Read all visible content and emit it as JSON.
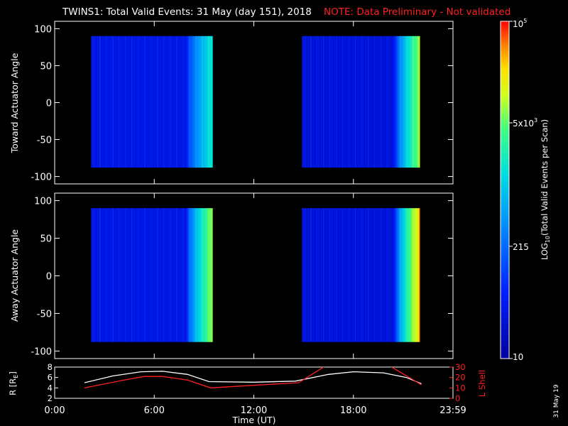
{
  "title_main": "TWINS1: Total Valid Events: 31 May (day 151), 2018",
  "title_note": "NOTE: Data Preliminary - Not validated",
  "stamp": "31 May 19",
  "colors": {
    "background": "#000000",
    "axes": "#ffffff",
    "note": "#ff2020",
    "lshell": "#ff2020",
    "radius": "#ffffff"
  },
  "chart_data": [
    {
      "type": "heatmap",
      "ylabel": "Toward Actuator Angle",
      "ylim": [
        -110,
        110
      ],
      "yticks": [
        100,
        50,
        0,
        -50,
        -100
      ],
      "xlim": [
        0,
        24
      ],
      "scale": "log",
      "data_blocks": [
        {
          "x": [
            2.2,
            9.5
          ],
          "y": [
            -88,
            90
          ],
          "level_start": 0.14,
          "level_end": 0.58
        },
        {
          "x": [
            14.9,
            22.0
          ],
          "y": [
            -88,
            90
          ],
          "level_start": 0.12,
          "level_end": 0.74
        }
      ]
    },
    {
      "type": "heatmap",
      "ylabel": "Away Actuator Angle",
      "ylim": [
        -110,
        110
      ],
      "yticks": [
        100,
        50,
        0,
        -50,
        -100
      ],
      "xlim": [
        0,
        24
      ],
      "scale": "log",
      "data_blocks": [
        {
          "x": [
            2.2,
            9.5
          ],
          "y": [
            -88,
            90
          ],
          "level_start": 0.14,
          "level_end": 0.74
        },
        {
          "x": [
            14.9,
            22.0
          ],
          "y": [
            -88,
            90
          ],
          "level_start": 0.12,
          "level_end": 0.86
        }
      ]
    },
    {
      "type": "line",
      "ylabel_left": "R [R",
      "ylabel_left_sub": "E",
      "ylabel_left_close": "]",
      "ylabel_right": "L Shell",
      "ylim_left": [
        2,
        8
      ],
      "yticks_left": [
        8,
        6,
        4,
        2
      ],
      "ylim_right": [
        0,
        30
      ],
      "yticks_right": [
        30,
        20,
        10,
        0
      ],
      "xlim": [
        0,
        24
      ],
      "xlabel": "Time (UT)",
      "xticks": [
        {
          "t": 0,
          "label": "0:00"
        },
        {
          "t": 6,
          "label": "6:00"
        },
        {
          "t": 12,
          "label": "12:00"
        },
        {
          "t": 18,
          "label": "18:00"
        },
        {
          "t": 24,
          "label": "23:59"
        }
      ],
      "series": [
        {
          "axis": "left",
          "color": "#ffffff",
          "points": [
            [
              1.8,
              5.0
            ],
            [
              3.5,
              6.3
            ],
            [
              5.2,
              7.1
            ],
            [
              6.5,
              7.2
            ],
            [
              8.0,
              6.6
            ],
            [
              9.3,
              5.2
            ],
            [
              12.0,
              5.1
            ],
            [
              14.5,
              5.3
            ],
            [
              16.5,
              6.6
            ],
            [
              18.0,
              7.1
            ],
            [
              19.8,
              6.9
            ],
            [
              21.2,
              6.0
            ],
            [
              22.1,
              4.8
            ]
          ]
        },
        {
          "axis": "right",
          "color": "#ff2020",
          "points": [
            [
              1.8,
              10.0
            ],
            [
              4.0,
              17.0
            ],
            [
              5.4,
              21.0
            ],
            [
              6.5,
              21.0
            ],
            [
              8.0,
              17.5
            ],
            [
              9.4,
              10.0
            ],
            [
              12.0,
              12.5
            ],
            [
              14.7,
              15.0
            ],
            [
              16.3,
              31.0
            ]
          ],
          "points2": [
            [
              20.2,
              31.0
            ],
            [
              22.1,
              13.0
            ]
          ]
        }
      ]
    }
  ],
  "colorbar": {
    "label_main": "LOG",
    "label_sub": "10",
    "label_rest": "(Total Valid Events per Scan)",
    "ticks": [
      {
        "frac": 0.0,
        "base": "10",
        "exp": ""
      },
      {
        "frac": 0.333,
        "base": "215",
        "exp": ""
      },
      {
        "frac": 0.699,
        "base": "5x10",
        "exp": "3"
      },
      {
        "frac": 1.0,
        "base": "10",
        "exp": "5"
      }
    ]
  }
}
